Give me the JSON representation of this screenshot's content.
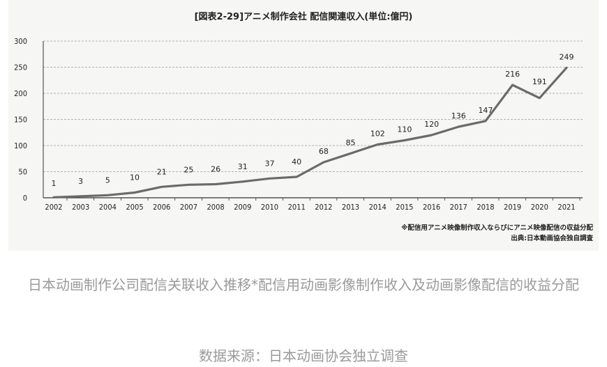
{
  "chart_data": {
    "type": "line",
    "title": "[図表2-29]アニメ制作会社 配信関連収入(単位:億円)",
    "x": [
      "2002",
      "2003",
      "2004",
      "2005",
      "2006",
      "2007",
      "2008",
      "2009",
      "2010",
      "2011",
      "2012",
      "2013",
      "2014",
      "2015",
      "2016",
      "2017",
      "2018",
      "2019",
      "2020",
      "2021"
    ],
    "series": [
      {
        "values": [
          1,
          3,
          5,
          10,
          21,
          25,
          26,
          31,
          37,
          40,
          68,
          85,
          102,
          110,
          120,
          136,
          147,
          216,
          191,
          249
        ]
      }
    ],
    "yticks": [
      0,
      50,
      100,
      150,
      200,
      250,
      300
    ],
    "ylim": [
      0,
      300
    ],
    "grid": "horizontal-dashed",
    "line_color": "#6b6b6b",
    "notes": [
      "※配信用アニメ映像制作収入ならびにアニメ映像配信の収益分配",
      "出典:日本動画協会独自調査"
    ]
  },
  "caption": "日本动画制作公司配信关联收入推移*配信用动画影像制作收入及动画影像配信的收益分配",
  "source": "数据来源：日本动画协会独立调查"
}
